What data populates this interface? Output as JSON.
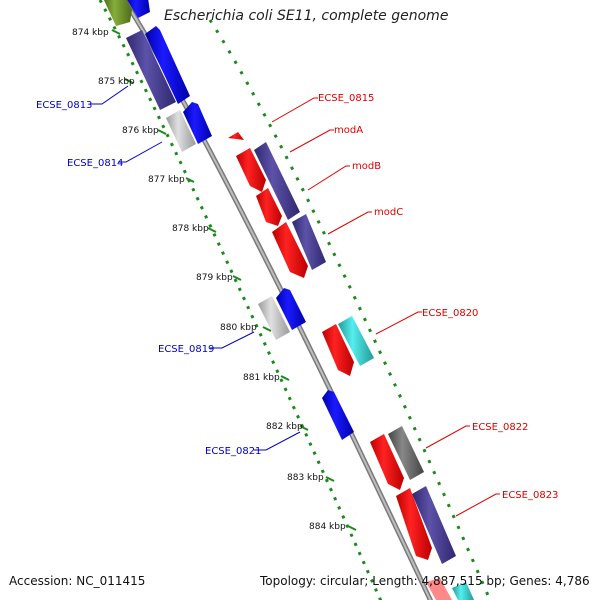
{
  "title": "Escherichia coli SE11, complete genome",
  "footer": {
    "accession": "Accession: NC_011415",
    "summary": "Topology: circular; Length: 4,887,515 bp; Genes: 4,786"
  },
  "ruler_ticks": [
    {
      "kb": 874,
      "label": "874 kbp"
    },
    {
      "kb": 875,
      "label": "875 kbp"
    },
    {
      "kb": 876,
      "label": "876 kbp"
    },
    {
      "kb": 877,
      "label": "877 kbp"
    },
    {
      "kb": 878,
      "label": "878 kbp"
    },
    {
      "kb": 879,
      "label": "879 kbp"
    },
    {
      "kb": 880,
      "label": "880 kbp"
    },
    {
      "kb": 881,
      "label": "881 kbp"
    },
    {
      "kb": 882,
      "label": "882 kbp"
    },
    {
      "kb": 883,
      "label": "883 kbp"
    },
    {
      "kb": 884,
      "label": "884 kbp"
    }
  ],
  "gene_labels": [
    {
      "name": "ECSE_0813",
      "side": "left",
      "color": "#0000cc"
    },
    {
      "name": "ECSE_0814",
      "side": "left",
      "color": "#0000cc"
    },
    {
      "name": "ECSE_0819",
      "side": "left",
      "color": "#0000cc"
    },
    {
      "name": "ECSE_0821",
      "side": "left",
      "color": "#0000cc"
    },
    {
      "name": "ECSE_0815",
      "side": "right",
      "color": "#dd0000"
    },
    {
      "name": "modA",
      "side": "right",
      "color": "#dd0000"
    },
    {
      "name": "modB",
      "side": "right",
      "color": "#dd0000"
    },
    {
      "name": "modC",
      "side": "right",
      "color": "#dd0000"
    },
    {
      "name": "ECSE_0820",
      "side": "right",
      "color": "#dd0000"
    },
    {
      "name": "ECSE_0822",
      "side": "right",
      "color": "#dd0000"
    },
    {
      "name": "ECSE_0823",
      "side": "right",
      "color": "#dd0000"
    }
  ],
  "colors": {
    "forward_cds": "#0000dd",
    "reverse_cds": "#ee0000",
    "blast_hit": "#4a3f8c",
    "gray_feature": "#c0c0c0",
    "cyan_feature": "#33cccc",
    "olive_feature": "#6b8e23",
    "dark_gray_feature": "#666666",
    "backbone": "#888888",
    "gc_dots": "#1a8a1a"
  }
}
